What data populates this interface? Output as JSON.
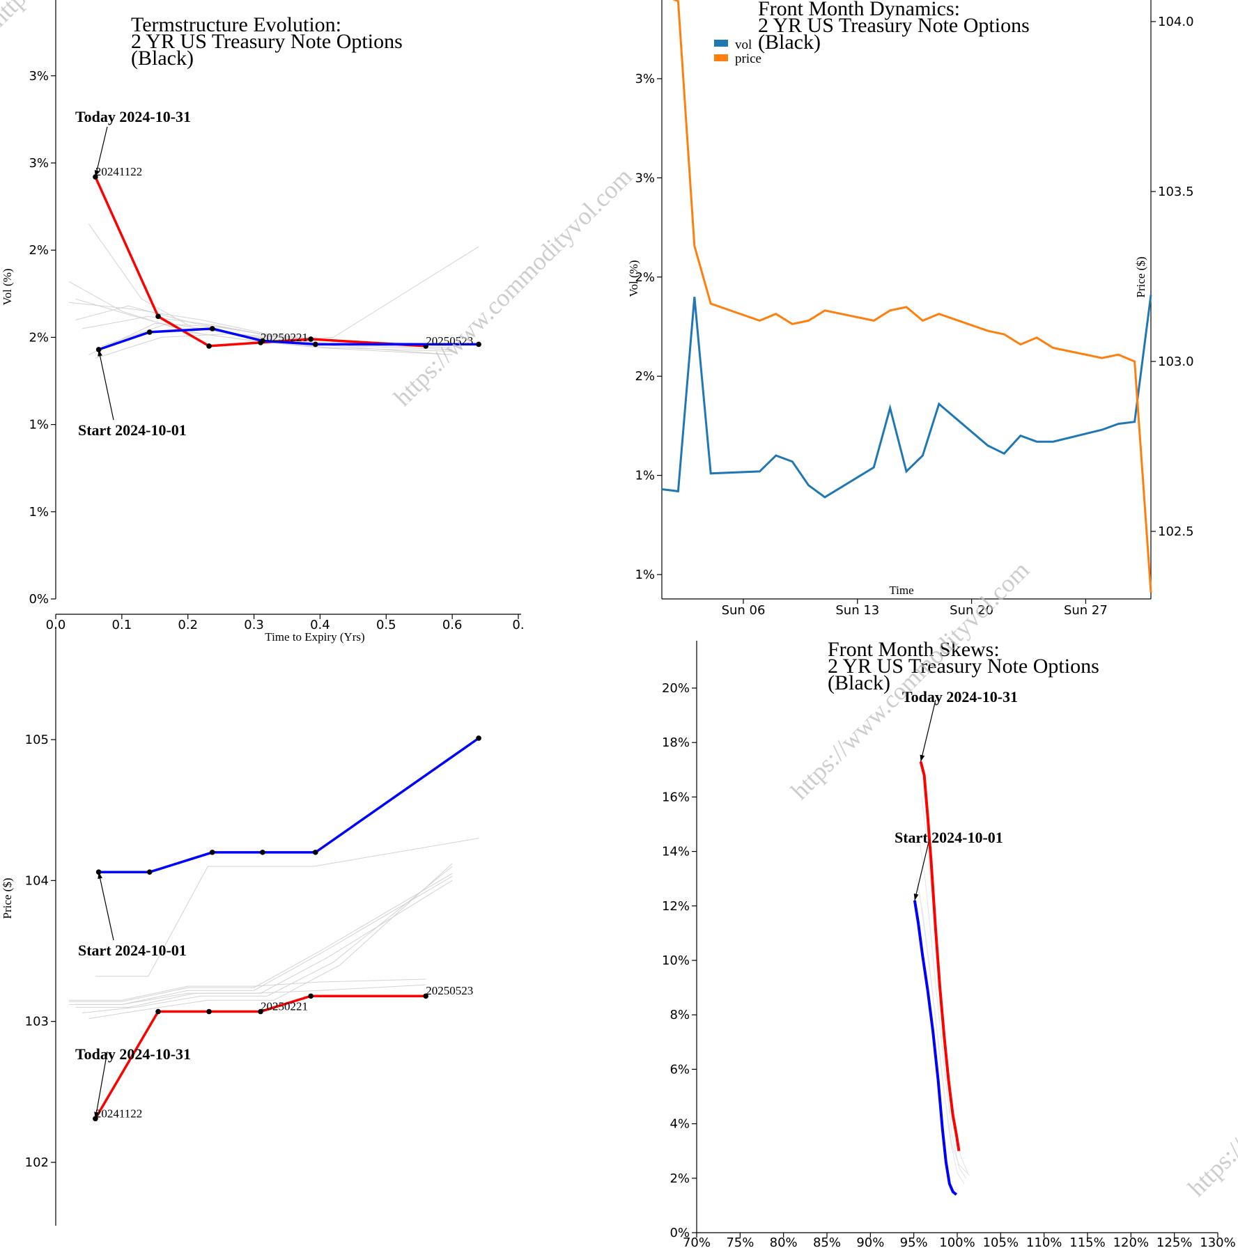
{
  "watermark": "https://www.commodityvol.com",
  "chart_data": [
    {
      "id": "termstructure-vol",
      "type": "line",
      "title": [
        "Termstructure Evolution:",
        "2 YR US Treasury Note Options",
        "(Black)"
      ],
      "xlabel": "Time to Expiry (Yrs)",
      "ylabel": "Vol (%)",
      "xlim": [
        0,
        0.7
      ],
      "ylim": [
        0,
        3.45
      ],
      "xticks": [
        0.0,
        0.1,
        0.2,
        0.3,
        0.4,
        0.5,
        0.6,
        0.7
      ],
      "xtick_labels": [
        "0.0",
        "0.1",
        "0.2",
        "0.3",
        "0.4",
        "0.5",
        "0.6",
        "0."
      ],
      "yticks": [
        0,
        0.5,
        1.0,
        1.5,
        2.0,
        2.5,
        3.0
      ],
      "ytick_labels": [
        "0%",
        "1%",
        "1%",
        "2%",
        "2%",
        "3%",
        "3%"
      ],
      "series": [
        {
          "name": "Today 2024-10-31",
          "color": "#ff0000",
          "x": [
            0.06,
            0.155,
            0.232,
            0.31,
            0.386,
            0.56
          ],
          "y": [
            2.42,
            1.62,
            1.45,
            1.47,
            1.49,
            1.45
          ]
        },
        {
          "name": "Start 2024-10-01",
          "color": "#0000ff",
          "x": [
            0.065,
            0.142,
            0.237,
            0.313,
            0.393,
            0.64
          ],
          "y": [
            1.43,
            1.53,
            1.55,
            1.48,
            1.46,
            1.46
          ]
        }
      ],
      "history_series": [
        {
          "x": [
            0.02,
            0.1,
            0.2,
            0.3,
            0.4,
            0.6
          ],
          "y": [
            1.82,
            1.65,
            1.53,
            1.48,
            1.44,
            1.4
          ]
        },
        {
          "x": [
            0.03,
            0.12,
            0.22,
            0.32,
            0.42,
            0.6
          ],
          "y": [
            1.72,
            1.62,
            1.52,
            1.47,
            1.44,
            1.42
          ]
        },
        {
          "x": [
            0.05,
            0.13,
            0.21,
            0.31,
            0.41,
            0.6
          ],
          "y": [
            2.15,
            1.72,
            1.55,
            1.5,
            1.46,
            1.44
          ]
        },
        {
          "x": [
            0.04,
            0.14,
            0.24,
            0.34,
            0.44,
            0.6
          ],
          "y": [
            1.55,
            1.62,
            1.57,
            1.5,
            1.47,
            1.45
          ]
        },
        {
          "x": [
            0.03,
            0.11,
            0.21,
            0.31,
            0.41,
            0.6
          ],
          "y": [
            1.6,
            1.68,
            1.58,
            1.52,
            1.48,
            1.46
          ]
        },
        {
          "x": [
            0.05,
            0.15,
            0.25,
            0.35,
            0.45,
            0.6
          ],
          "y": [
            1.4,
            1.58,
            1.56,
            1.49,
            1.45,
            1.43
          ]
        },
        {
          "x": [
            0.06,
            0.16,
            0.26,
            0.36,
            0.46,
            0.6
          ],
          "y": [
            1.38,
            1.5,
            1.52,
            1.47,
            1.44,
            1.4
          ]
        },
        {
          "x": [
            0.02,
            0.12,
            0.22,
            0.32,
            0.42,
            0.6
          ],
          "y": [
            1.7,
            1.66,
            1.6,
            1.52,
            1.48,
            1.46
          ]
        },
        {
          "x": [
            0.07,
            0.17,
            0.27,
            0.37,
            0.42,
            0.64
          ],
          "y": [
            1.45,
            1.58,
            1.52,
            1.49,
            1.5,
            2.02
          ]
        }
      ],
      "point_labels": [
        {
          "text": "20241122",
          "x": 0.06,
          "y": 2.42
        },
        {
          "text": "20250221",
          "x": 0.31,
          "y": 1.47
        },
        {
          "text": "20250523",
          "x": 0.56,
          "y": 1.45
        }
      ],
      "annotations": [
        {
          "text": "Today 2024-10-31",
          "x": 0.06,
          "y": 2.42
        },
        {
          "text": "Start 2024-10-01",
          "x": 0.065,
          "y": 1.43
        }
      ]
    },
    {
      "id": "front-month-dynamics",
      "type": "line",
      "title": [
        "Front Month Dynamics:",
        "2 YR US Treasury Note Options",
        "(Black)"
      ],
      "xlabel": "Time",
      "ylabel": "Vol (%)",
      "y2label": "Price ($)",
      "xlim": [
        "2024-10-01",
        "2024-10-31"
      ],
      "xticks": [
        "2024-10-06",
        "2024-10-13",
        "2024-10-20",
        "2024-10-27"
      ],
      "xtick_labels": [
        "Sun 06",
        "Sun 13",
        "Sun 20",
        "Sun 27"
      ],
      "ylim": [
        0.75,
        3.8
      ],
      "yticks": [
        1.0,
        1.5,
        2.0,
        2.5,
        3.0,
        3.5
      ],
      "ytick_labels": [
        "1%",
        "1%",
        "2%",
        "2%",
        "3%",
        "3%"
      ],
      "y2lim": [
        102.3,
        104.1
      ],
      "y2ticks": [
        102.5,
        103.0,
        103.5,
        104.0
      ],
      "y2tick_labels": [
        "102.5",
        "103.0",
        "103.5",
        "104.0"
      ],
      "legend": [
        {
          "name": "vol",
          "color": "#1f77b4"
        },
        {
          "name": "price",
          "color": "#ff7f0e"
        }
      ],
      "legend_position": "top-left",
      "series": [
        {
          "name": "vol",
          "color": "#1f77b4",
          "axis": "left",
          "x": [
            "2024-10-01",
            "2024-10-02",
            "2024-10-03",
            "2024-10-04",
            "2024-10-07",
            "2024-10-08",
            "2024-10-09",
            "2024-10-10",
            "2024-10-11",
            "2024-10-14",
            "2024-10-15",
            "2024-10-16",
            "2024-10-17",
            "2024-10-18",
            "2024-10-21",
            "2024-10-22",
            "2024-10-23",
            "2024-10-24",
            "2024-10-25",
            "2024-10-28",
            "2024-10-29",
            "2024-10-30",
            "2024-10-31"
          ],
          "y": [
            1.43,
            1.42,
            2.4,
            1.51,
            1.52,
            1.6,
            1.57,
            1.45,
            1.39,
            1.54,
            1.84,
            1.52,
            1.6,
            1.86,
            1.65,
            1.61,
            1.7,
            1.67,
            1.67,
            1.73,
            1.76,
            1.77,
            2.41
          ]
        },
        {
          "name": "price",
          "color": "#ff7f0e",
          "axis": "right",
          "x": [
            "2024-10-01",
            "2024-10-02",
            "2024-10-03",
            "2024-10-04",
            "2024-10-07",
            "2024-10-08",
            "2024-10-09",
            "2024-10-10",
            "2024-10-11",
            "2024-10-14",
            "2024-10-15",
            "2024-10-16",
            "2024-10-17",
            "2024-10-18",
            "2024-10-21",
            "2024-10-22",
            "2024-10-23",
            "2024-10-24",
            "2024-10-25",
            "2024-10-28",
            "2024-10-29",
            "2024-10-30",
            "2024-10-31"
          ],
          "y": [
            104.08,
            104.06,
            103.34,
            103.17,
            103.12,
            103.14,
            103.11,
            103.12,
            103.15,
            103.12,
            103.15,
            103.16,
            103.12,
            103.14,
            103.09,
            103.08,
            103.05,
            103.07,
            103.04,
            103.01,
            103.02,
            103.0,
            102.32
          ]
        }
      ]
    },
    {
      "id": "termstructure-price",
      "type": "line",
      "title": [],
      "xlabel": "",
      "ylabel": "Price ($)",
      "xlim": [
        0,
        0.7
      ],
      "ylim": [
        101.55,
        105.9
      ],
      "yticks": [
        102,
        103,
        104,
        105
      ],
      "ytick_labels": [
        "102",
        "103",
        "104",
        "105"
      ],
      "series": [
        {
          "name": "Today 2024-10-31",
          "color": "#ff0000",
          "x": [
            0.06,
            0.155,
            0.232,
            0.31,
            0.386,
            0.56
          ],
          "y": [
            102.31,
            103.07,
            103.07,
            103.07,
            103.18,
            103.18
          ]
        },
        {
          "name": "Start 2024-10-01",
          "color": "#0000ff",
          "x": [
            0.065,
            0.142,
            0.237,
            0.313,
            0.393,
            0.64
          ],
          "y": [
            104.06,
            104.06,
            104.2,
            104.2,
            104.2,
            105.01
          ]
        }
      ],
      "history_series": [
        {
          "x": [
            0.06,
            0.14,
            0.23,
            0.31,
            0.39,
            0.64
          ],
          "y": [
            103.32,
            103.32,
            104.1,
            104.1,
            104.1,
            104.3
          ]
        },
        {
          "x": [
            0.02,
            0.1,
            0.2,
            0.3,
            0.4,
            0.6
          ],
          "y": [
            103.14,
            103.14,
            103.24,
            103.24,
            103.5,
            104.05
          ]
        },
        {
          "x": [
            0.02,
            0.1,
            0.2,
            0.3,
            0.4,
            0.6
          ],
          "y": [
            103.12,
            103.12,
            103.22,
            103.22,
            103.48,
            104.03
          ]
        },
        {
          "x": [
            0.03,
            0.11,
            0.21,
            0.31,
            0.41,
            0.6
          ],
          "y": [
            103.1,
            103.1,
            103.2,
            103.2,
            103.45,
            104.0
          ]
        },
        {
          "x": [
            0.04,
            0.12,
            0.22,
            0.32,
            0.42,
            0.6
          ],
          "y": [
            103.06,
            103.1,
            103.18,
            103.18,
            103.42,
            104.1
          ]
        },
        {
          "x": [
            0.05,
            0.13,
            0.23,
            0.33,
            0.43,
            0.6
          ],
          "y": [
            103.02,
            103.08,
            103.15,
            103.15,
            103.4,
            104.12
          ]
        },
        {
          "x": [
            0.03,
            0.1,
            0.2,
            0.3,
            0.4,
            0.56
          ],
          "y": [
            103.12,
            103.12,
            103.2,
            103.2,
            103.22,
            103.26
          ]
        },
        {
          "x": [
            0.02,
            0.1,
            0.2,
            0.3,
            0.4,
            0.56
          ],
          "y": [
            103.15,
            103.15,
            103.25,
            103.25,
            103.28,
            103.3
          ]
        }
      ],
      "point_labels": [
        {
          "text": "20241122",
          "x": 0.06,
          "y": 102.31
        },
        {
          "text": "20250221",
          "x": 0.31,
          "y": 103.07
        },
        {
          "text": "20250523",
          "x": 0.56,
          "y": 103.18
        }
      ],
      "annotations": [
        {
          "text": "Start 2024-10-01",
          "x": 0.065,
          "y": 104.06
        },
        {
          "text": "Today 2024-10-31",
          "x": 0.06,
          "y": 102.31
        }
      ]
    },
    {
      "id": "front-month-skews",
      "type": "line",
      "title": [
        "Front Month Skews:",
        "2 YR US Treasury Note Options",
        "(Black)"
      ],
      "xlabel": "",
      "ylabel": "",
      "xlim": [
        70,
        130
      ],
      "ylim": [
        0,
        21.5
      ],
      "xticks": [
        70,
        75,
        80,
        85,
        90,
        95,
        100,
        105,
        110,
        115,
        120,
        125,
        130
      ],
      "xtick_labels": [
        "70%",
        "75%",
        "80%",
        "85%",
        "90%",
        "95%",
        "100%",
        "105%",
        "110%",
        "115%",
        "120%",
        "125%",
        "130%"
      ],
      "yticks": [
        0,
        2,
        4,
        6,
        8,
        10,
        12,
        14,
        16,
        18,
        20
      ],
      "ytick_labels": [
        "0%",
        "2%",
        "4%",
        "6%",
        "8%",
        "10%",
        "12%",
        "14%",
        "16%",
        "18%",
        "20%"
      ],
      "series": [
        {
          "name": "Today 2024-10-31",
          "color": "#ff0000",
          "x": [
            95.8,
            96.2,
            96.6,
            97.0,
            97.5,
            98.0,
            98.5,
            99.0,
            99.5,
            99.9,
            100.2
          ],
          "y": [
            17.3,
            16.8,
            15.3,
            13.6,
            11.2,
            9.0,
            7.2,
            5.6,
            4.3,
            3.6,
            3.0
          ]
        },
        {
          "name": "Start 2024-10-01",
          "color": "#0000ff",
          "x": [
            95.1,
            95.5,
            96.0,
            96.6,
            97.2,
            97.8,
            98.3,
            98.7,
            99.1,
            99.5,
            99.9
          ],
          "y": [
            12.2,
            11.4,
            10.2,
            8.9,
            7.4,
            5.6,
            3.8,
            2.6,
            1.8,
            1.5,
            1.4
          ]
        }
      ],
      "history_series": [
        {
          "x": [
            95.6,
            96.3,
            97.0,
            97.8,
            98.6,
            99.4,
            100.2,
            101.0
          ],
          "y": [
            14.5,
            13.0,
            10.8,
            8.2,
            5.8,
            3.6,
            2.4,
            2.0
          ]
        },
        {
          "x": [
            95.3,
            96.0,
            96.8,
            97.6,
            98.4,
            99.2,
            100.0,
            100.8
          ],
          "y": [
            13.0,
            11.8,
            9.8,
            7.6,
            5.4,
            3.4,
            2.2,
            1.8
          ]
        },
        {
          "x": [
            95.9,
            96.5,
            97.2,
            98.0,
            98.8,
            99.6,
            100.4,
            101.2
          ],
          "y": [
            16.0,
            14.4,
            12.0,
            9.2,
            6.6,
            4.2,
            2.8,
            2.2
          ]
        },
        {
          "x": [
            95.5,
            96.2,
            97.0,
            97.8,
            98.6,
            99.4,
            100.2,
            101.4
          ],
          "y": [
            12.8,
            11.2,
            9.2,
            7.0,
            4.9,
            3.2,
            2.5,
            2.1
          ]
        }
      ],
      "annotations": [
        {
          "text": "Today 2024-10-31",
          "x": 95.8,
          "y": 17.3
        },
        {
          "text": "Start 2024-10-01",
          "x": 95.1,
          "y": 12.2
        }
      ]
    }
  ]
}
